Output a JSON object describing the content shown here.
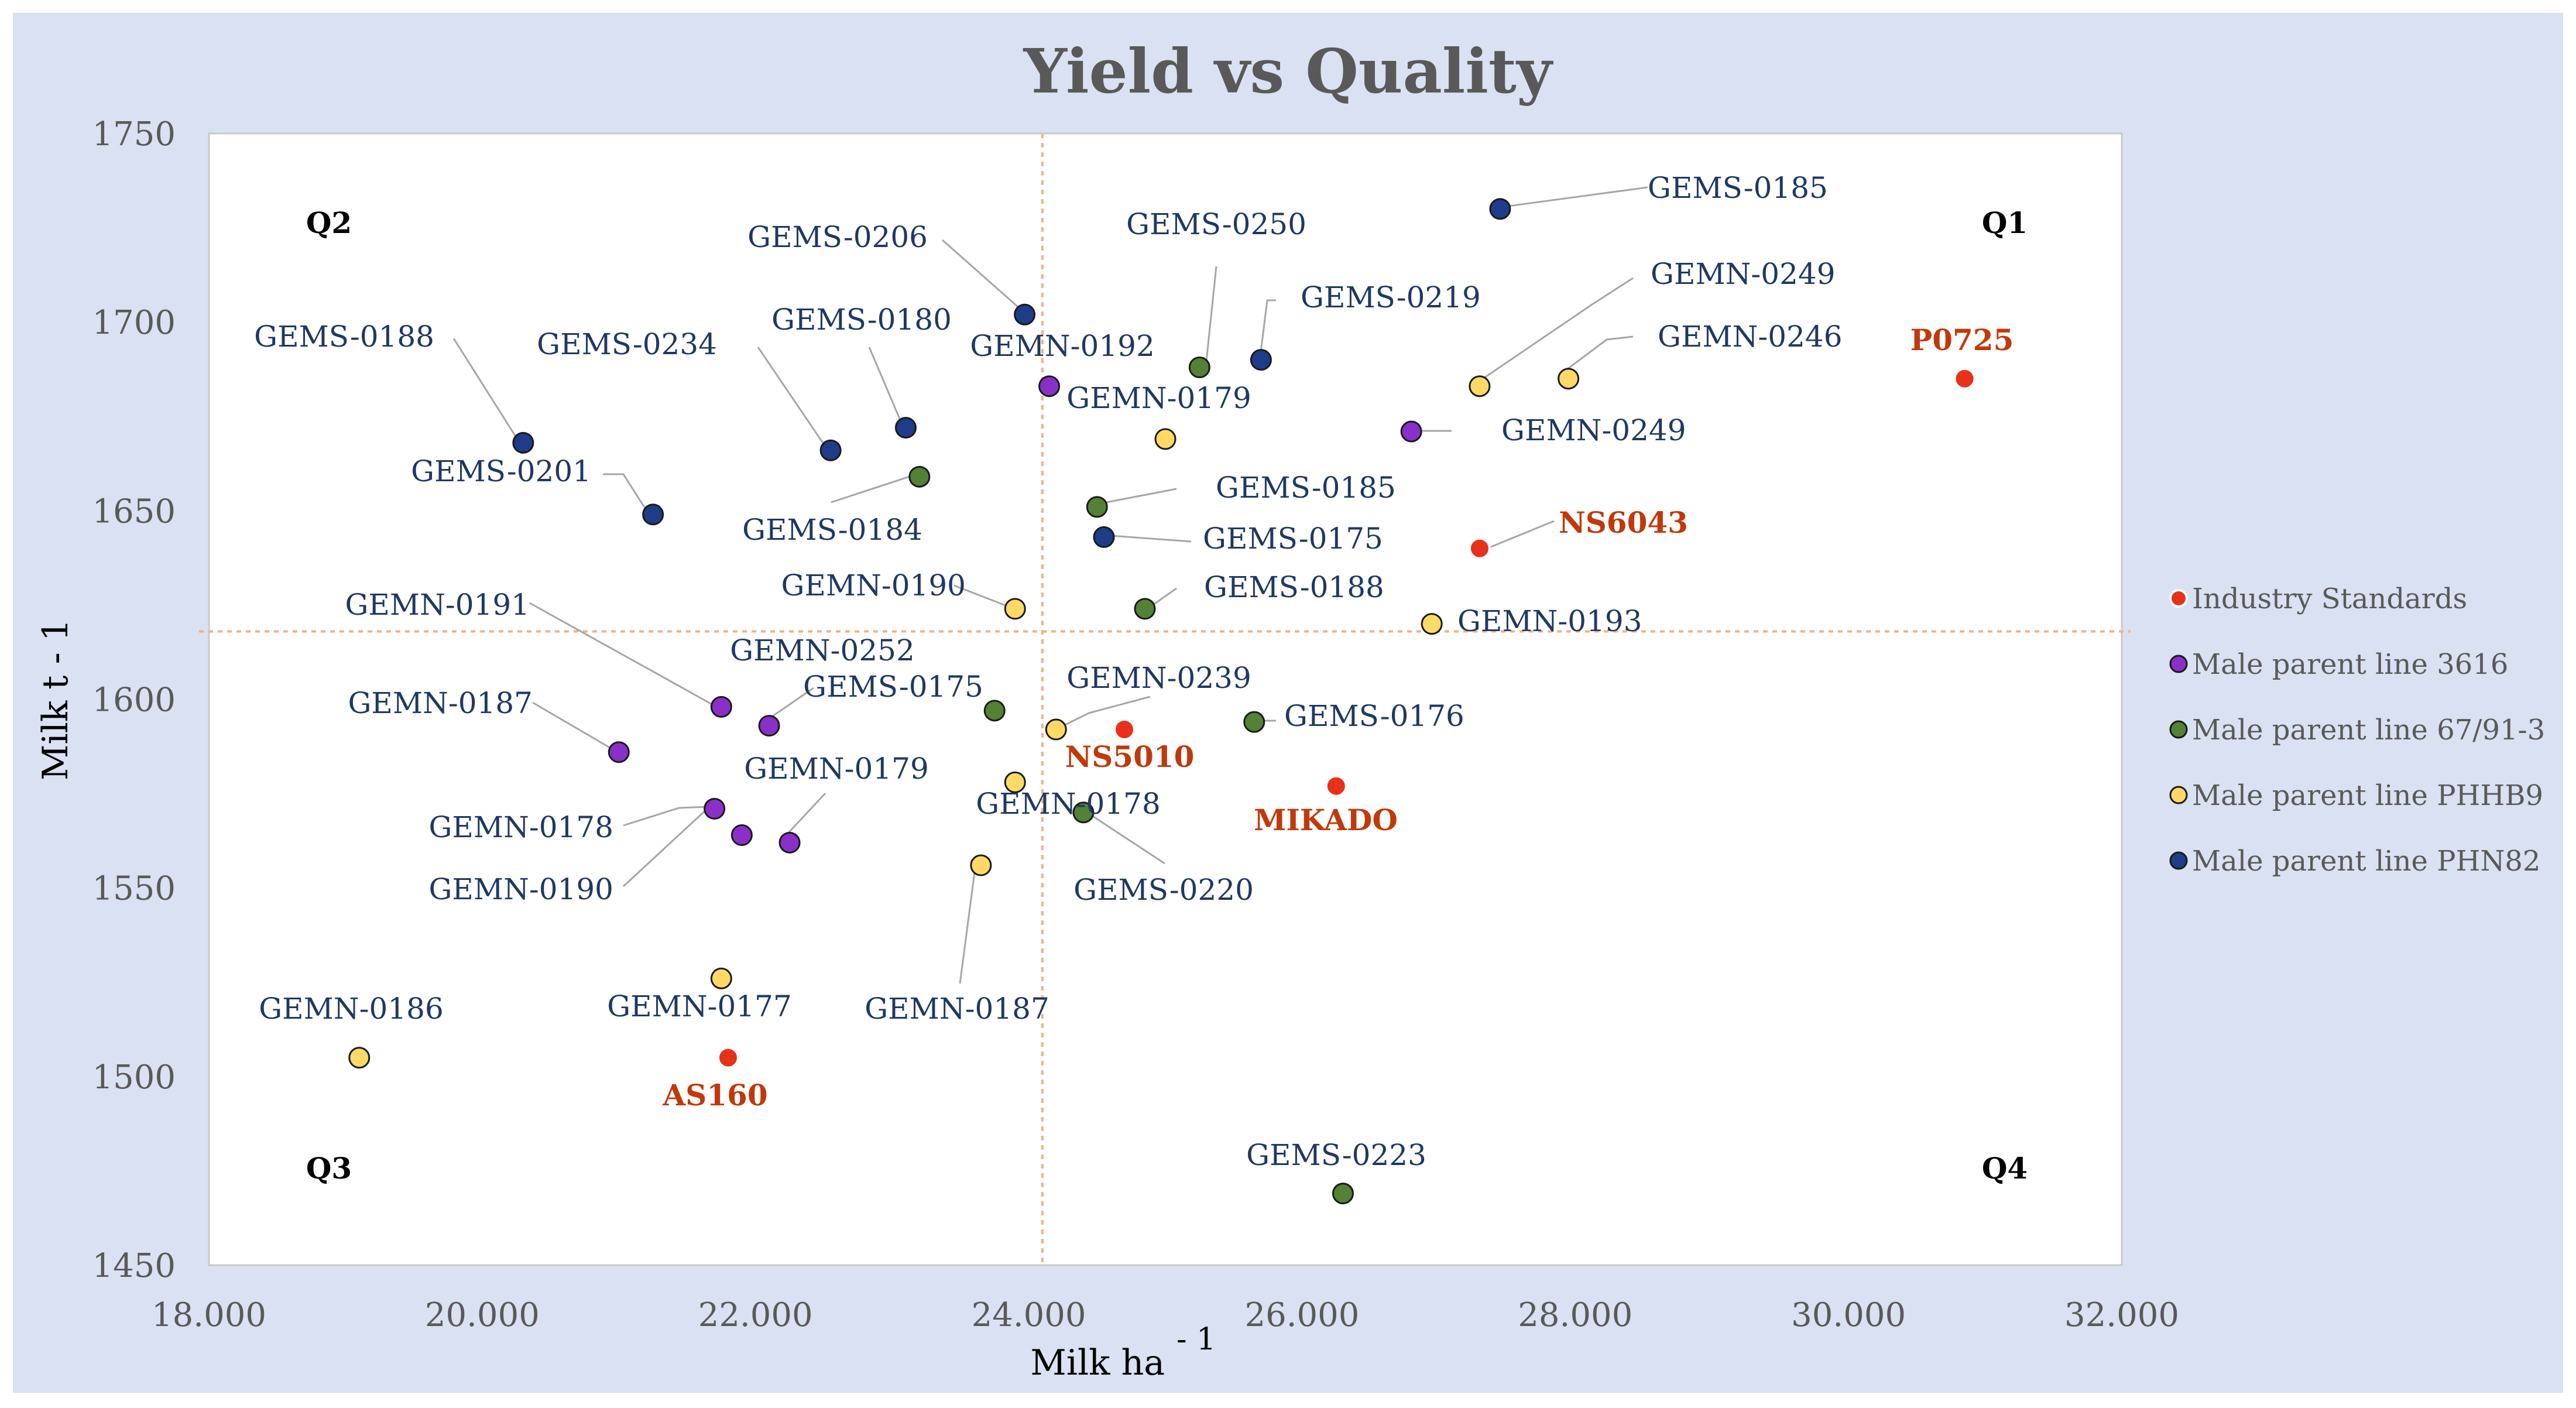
{
  "chart_data": {
    "type": "scatter",
    "title": "Yield vs Quality",
    "xlabel": "Milk ha",
    "xlabel_sup": "- 1",
    "ylabel": "Milk t - 1",
    "xlim": [
      18,
      32
    ],
    "ylim": [
      1450,
      1750
    ],
    "x_ticks": [
      18,
      20,
      22,
      24,
      26,
      28,
      30,
      32
    ],
    "x_tick_labels": [
      "18.000",
      "20.000",
      "22.000",
      "24.000",
      "26.000",
      "28.000",
      "30.000",
      "32.000"
    ],
    "y_ticks": [
      1450,
      1500,
      1550,
      1600,
      1650,
      1700,
      1750
    ],
    "y_tick_labels": [
      "1450",
      "1500",
      "1550",
      "1600",
      "1650",
      "1700",
      "1750"
    ],
    "reference_lines": {
      "x": 24.1,
      "y": 1618
    },
    "quadrant_labels": [
      "Q1",
      "Q2",
      "Q3",
      "Q4"
    ],
    "legend_position": "right",
    "colors": {
      "background": "#d9e1f2",
      "label_text": "#1f3864",
      "industry_label": "#c0390b",
      "axis_text": "#595959",
      "ref_line": "#f4b183"
    },
    "series": [
      {
        "name": "Industry Standards",
        "color": "#e8311a",
        "points": [
          {
            "label": "P0725",
            "x": 30.85,
            "y": 1685
          },
          {
            "label": "NS6043",
            "x": 27.3,
            "y": 1640
          },
          {
            "label": "NS5010",
            "x": 24.7,
            "y": 1592
          },
          {
            "label": "MIKADO",
            "x": 26.25,
            "y": 1577
          },
          {
            "label": "AS160",
            "x": 21.8,
            "y": 1505
          }
        ]
      },
      {
        "name": "Male parent line 3616",
        "color": "#8b2fc9",
        "points": [
          {
            "label": "GEMN-0192",
            "x": 24.15,
            "y": 1683
          },
          {
            "label": "GEMN-0249",
            "x": 26.8,
            "y": 1671
          },
          {
            "label": "GEMN-0191",
            "x": 21.75,
            "y": 1598
          },
          {
            "label": "GEMN-0252",
            "x": 22.1,
            "y": 1593
          },
          {
            "label": "GEMN-0187",
            "x": 21.0,
            "y": 1586
          },
          {
            "label": "GEMN-0178",
            "x": 21.7,
            "y": 1571
          },
          {
            "label": "GEMN-0190",
            "x": 21.9,
            "y": 1564
          },
          {
            "label": "GEMN-0179",
            "x": 22.25,
            "y": 1562
          }
        ]
      },
      {
        "name": "Male parent line 67/91-3",
        "color": "#538135",
        "points": [
          {
            "label": "GEMS-0250",
            "x": 25.25,
            "y": 1688
          },
          {
            "label": "GEMS-0184",
            "x": 23.2,
            "y": 1659
          },
          {
            "label": "GEMS-0185",
            "x": 24.5,
            "y": 1651
          },
          {
            "label": "GEMS-0188",
            "x": 24.85,
            "y": 1624
          },
          {
            "label": "GEMS-0175",
            "x": 23.75,
            "y": 1597
          },
          {
            "label": "GEMS-0176",
            "x": 25.65,
            "y": 1594
          },
          {
            "label": "GEMS-0220",
            "x": 24.4,
            "y": 1570
          },
          {
            "label": "GEMS-0223",
            "x": 26.3,
            "y": 1469
          }
        ]
      },
      {
        "name": "Male parent line PHHB9",
        "color": "#ffd966",
        "points": [
          {
            "label": "GEMN-0249",
            "x": 27.3,
            "y": 1683
          },
          {
            "label": "GEMN-0246",
            "x": 27.95,
            "y": 1685
          },
          {
            "label": "GEMN-0179",
            "x": 25.0,
            "y": 1669
          },
          {
            "label": "GEMN-0190",
            "x": 23.9,
            "y": 1624
          },
          {
            "label": "GEMN-0193",
            "x": 26.95,
            "y": 1620
          },
          {
            "label": "GEMN-0239",
            "x": 24.2,
            "y": 1592
          },
          {
            "label": "GEMN-0178",
            "x": 23.9,
            "y": 1578
          },
          {
            "label": "GEMN-0187",
            "x": 23.65,
            "y": 1556
          },
          {
            "label": "GEMN-0177",
            "x": 21.75,
            "y": 1526
          },
          {
            "label": "GEMN-0186",
            "x": 19.1,
            "y": 1505
          }
        ]
      },
      {
        "name": "Male parent line PHN82",
        "color": "#1f3c88",
        "points": [
          {
            "label": "GEMS-0185",
            "x": 27.45,
            "y": 1730
          },
          {
            "label": "GEMS-0206",
            "x": 23.97,
            "y": 1702
          },
          {
            "label": "GEMS-0219",
            "x": 25.7,
            "y": 1690
          },
          {
            "label": "GEMS-0180",
            "x": 23.1,
            "y": 1672
          },
          {
            "label": "GEMS-0188",
            "x": 20.3,
            "y": 1668
          },
          {
            "label": "GEMS-0234",
            "x": 22.55,
            "y": 1666
          },
          {
            "label": "GEMS-0201",
            "x": 21.25,
            "y": 1649
          },
          {
            "label": "GEMS-0175",
            "x": 24.55,
            "y": 1643
          }
        ]
      }
    ]
  }
}
